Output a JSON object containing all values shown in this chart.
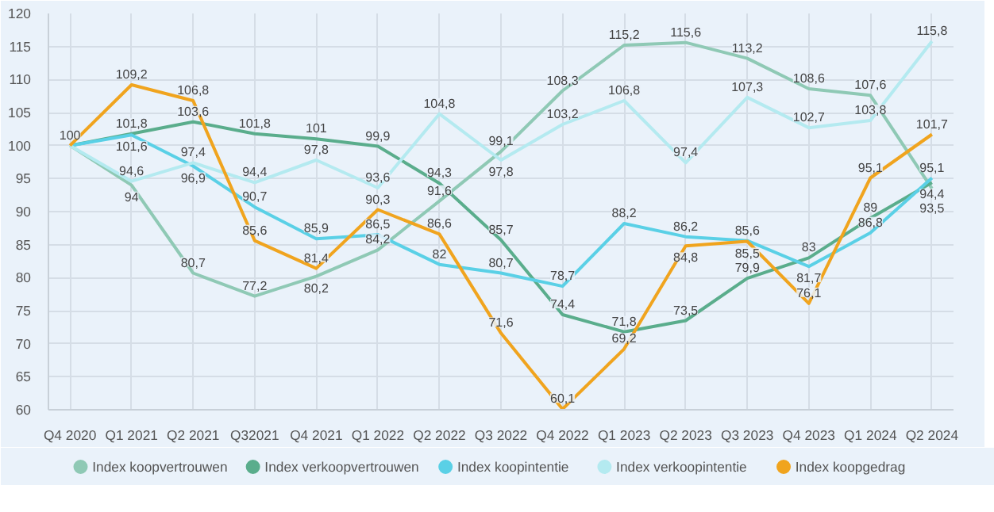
{
  "chart_data": {
    "type": "line",
    "categories": [
      "Q4 2020",
      "Q1 2021",
      "Q2 2021",
      "Q32021",
      "Q4 2021",
      "Q1 2022",
      "Q2 2022",
      "Q3 2022",
      "Q4 2022",
      "Q1 2023",
      "Q2 2023",
      "Q3 2023",
      "Q4 2023",
      "Q1 2024",
      "Q2 2024"
    ],
    "series": [
      {
        "name": "Index koopvertrouwen",
        "color": "#8fc9b5",
        "values": [
          100,
          94,
          80.7,
          77.2,
          80.2,
          84.2,
          91.6,
          99.1,
          108.3,
          115.2,
          115.6,
          113.2,
          108.6,
          107.6,
          93.5
        ],
        "value_labels": [
          "100",
          "94",
          "80,7",
          "77,2",
          "80,2",
          "84,2",
          "91,6",
          "99,1",
          "108,3",
          "115,2",
          "115,6",
          "113,2",
          "108,6",
          "107,6",
          "93,5"
        ]
      },
      {
        "name": "Index verkoopvertrouwen",
        "color": "#5aad8c",
        "values": [
          100,
          101.8,
          103.6,
          101.8,
          101,
          99.9,
          94.3,
          85.7,
          74.4,
          71.8,
          73.5,
          79.9,
          83,
          89,
          94.4
        ],
        "value_labels": [
          null,
          "101,8",
          "103,6",
          "101,8",
          "101",
          "99,9",
          "94,3",
          "85,7",
          "74,4",
          "71,8",
          "73,5",
          "79,9",
          "83",
          "89",
          "94,4"
        ]
      },
      {
        "name": "Index koopintentie",
        "color": "#5ad0e6",
        "values": [
          100,
          101.6,
          96.9,
          90.7,
          85.9,
          86.5,
          82,
          80.7,
          78.7,
          88.2,
          86.2,
          85.6,
          81.7,
          86.8,
          95.1
        ],
        "value_labels": [
          null,
          "101,6",
          "96,9",
          "90,7",
          "85,9",
          "86,5",
          "82",
          "80,7",
          "78,7",
          "88,2",
          "86,2",
          "85,6",
          "81,7",
          "86,8",
          "95,1"
        ]
      },
      {
        "name": "Index verkoopintentie",
        "color": "#b4eaf0",
        "values": [
          100,
          94.6,
          97.4,
          94.4,
          97.8,
          93.6,
          104.8,
          97.8,
          103.2,
          106.8,
          97.4,
          107.3,
          102.7,
          103.8,
          115.8
        ],
        "value_labels": [
          null,
          "94,6",
          "97,4",
          "94,4",
          "97,8",
          "93,6",
          "104,8",
          "97,8",
          "103,2",
          "106,8",
          "97,4",
          "107,3",
          "102,7",
          "103,8",
          "115,8"
        ]
      },
      {
        "name": "Index koopgedrag",
        "color": "#f0a41e",
        "values": [
          100,
          109.2,
          106.8,
          85.6,
          81.4,
          90.3,
          86.6,
          71.6,
          60.1,
          69.2,
          84.8,
          85.5,
          76.1,
          95.1,
          101.7
        ],
        "value_labels": [
          null,
          "109,2",
          "106,8",
          "85,6",
          "81,4",
          "90,3",
          "86,6",
          "71,6",
          "60,1",
          "69,2",
          "84,8",
          "85,5",
          "76,1",
          "95,1",
          "101,7"
        ]
      }
    ],
    "ylim": [
      60,
      120
    ],
    "yticks": [
      60,
      65,
      70,
      75,
      80,
      85,
      90,
      95,
      100,
      105,
      110,
      115,
      120
    ],
    "grid": true,
    "legend": "bottom"
  }
}
